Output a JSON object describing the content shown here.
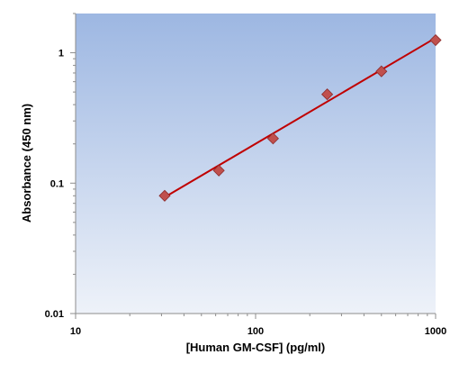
{
  "chart_data": {
    "type": "scatter",
    "xlabel": "[Human GM-CSF] (pg/ml)",
    "ylabel": "Absorbance (450 nm)",
    "xscale": "log",
    "yscale": "log",
    "xlim": [
      10,
      1000
    ],
    "ylim": [
      0.01,
      2
    ],
    "x_ticks": [
      10,
      100,
      1000
    ],
    "x_tick_labels": [
      "10",
      "100",
      "1000"
    ],
    "y_ticks": [
      0.01,
      0.1,
      1
    ],
    "y_tick_labels": [
      "0.01",
      "0.1",
      "1"
    ],
    "grid": false,
    "legend": "none",
    "series": [
      {
        "marker": "diamond",
        "x": [
          31.25,
          62.5,
          125,
          250,
          500,
          1000
        ],
        "y": [
          0.08,
          0.125,
          0.22,
          0.48,
          0.72,
          1.25
        ]
      }
    ],
    "fit_line": {
      "x": [
        31.25,
        1000
      ],
      "y": [
        0.078,
        1.3
      ]
    },
    "colors": {
      "marker": "#c0504d",
      "marker_edge": "#8c2b2b",
      "fit_line": "#c00000",
      "plot_bg_top": "#9db7e2",
      "plot_bg_bottom": "#eef2f9"
    }
  }
}
